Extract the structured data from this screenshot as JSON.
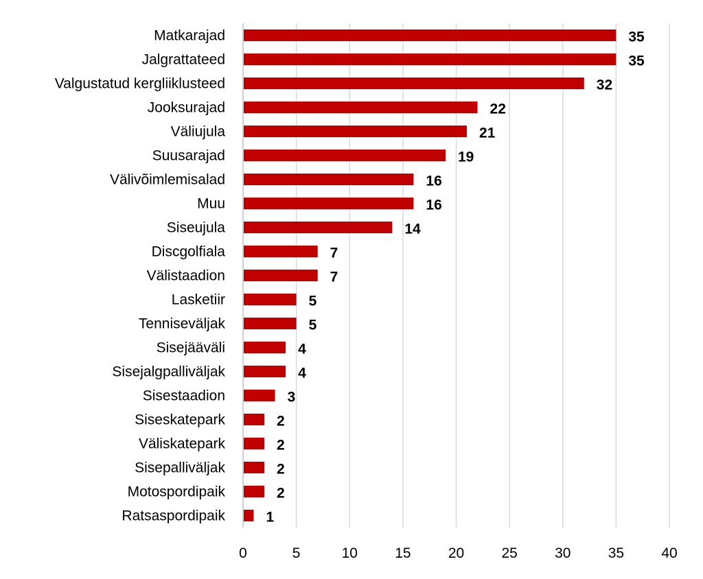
{
  "chart_data": {
    "type": "bar",
    "orientation": "horizontal",
    "categories": [
      "Matkarajad",
      "Jalgrattateed",
      "Valgustatud kergliiklusteed",
      "Jooksurajad",
      "Väliujula",
      "Suusarajad",
      "Välivõimlemisalad",
      "Muu",
      "Siseujula",
      "Discgolfiala",
      "Välistaadion",
      "Lasketiir",
      "Tenniseväljak",
      "Sisejääväli",
      "Sisejalgpalliväljak",
      "Sisestaadion",
      "Siseskatepark",
      "Väliskatepark",
      "Sisepalliväljak",
      "Motospordipaik",
      "Ratsaspordipaik"
    ],
    "values": [
      35,
      35,
      32,
      22,
      21,
      19,
      16,
      16,
      14,
      7,
      7,
      5,
      5,
      4,
      4,
      3,
      2,
      2,
      2,
      2,
      1
    ],
    "value_labels": [
      "35",
      "35",
      "32",
      "22",
      "21",
      "19",
      "16",
      "16",
      "14",
      "7",
      "7",
      "5",
      "5",
      "4",
      "4",
      "3",
      "2",
      "2",
      "2",
      "2",
      "1"
    ],
    "xlim": [
      0,
      40
    ],
    "xticks": [
      0,
      5,
      10,
      15,
      20,
      25,
      30,
      35,
      40
    ],
    "title": "",
    "xlabel": "",
    "ylabel": "",
    "grid": "vertical",
    "legend": "none",
    "bar_color": "#C00000",
    "grid_color": "#D9D9D9",
    "axis_color": "#BFBFBF"
  }
}
